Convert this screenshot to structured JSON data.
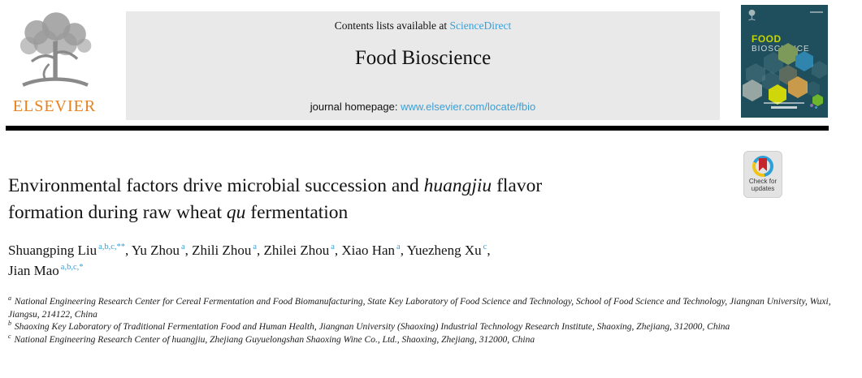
{
  "header": {
    "elsevier_logo_text": "ELSEVIER",
    "contents_prefix": "Contents lists available at ",
    "contents_link": "ScienceDirect",
    "journal_title": "Food Bioscience",
    "homepage_prefix": "journal homepage: ",
    "homepage_link": "www.elsevier.com/locate/fbio"
  },
  "cover": {
    "title_line1": "FOOD",
    "title_line2": "BIOSCIENCE"
  },
  "badge": {
    "line1": "Check for",
    "line2": "updates"
  },
  "article": {
    "title_lines": [
      [
        {
          "t": "Environmental factors drive microbial succession and ",
          "i": false
        },
        {
          "t": "huangjiu",
          "i": true
        },
        {
          "t": " flavor",
          "i": false
        }
      ],
      [
        {
          "t": "formation during raw wheat ",
          "i": false
        },
        {
          "t": "qu",
          "i": true
        },
        {
          "t": " fermentation",
          "i": false
        }
      ]
    ],
    "author_lines": [
      [
        {
          "name": "Shuangping Liu",
          "sup": "a,b,c,**",
          "tail": ", "
        },
        {
          "name": "Yu Zhou",
          "sup": "a",
          "tail": ", "
        },
        {
          "name": "Zhili Zhou",
          "sup": "a",
          "tail": ", "
        },
        {
          "name": "Zhilei Zhou",
          "sup": "a",
          "tail": ", "
        },
        {
          "name": "Xiao Han",
          "sup": "a",
          "tail": ", "
        },
        {
          "name": "Yuezheng Xu",
          "sup": "c",
          "tail": ","
        }
      ],
      [
        {
          "name": "Jian Mao",
          "sup": "a,b,c,*",
          "tail": ""
        }
      ]
    ],
    "affiliations": [
      {
        "sup": "a",
        "text": "National Engineering Research Center for Cereal Fermentation and Food Biomanufacturing, State Key Laboratory of Food Science and Technology, School of Food Science and Technology, Jiangnan University, Wuxi, Jiangsu, 214122, China"
      },
      {
        "sup": "b",
        "text": "Shaoxing Key Laboratory of Traditional Fermentation Food and Human Health, Jiangnan University (Shaoxing) Industrial Technology Research Institute, Shaoxing, Zhejiang, 312000, China"
      },
      {
        "sup": "c",
        "text": "National Engineering Research Center of huangjiu, Zhejiang Guyuelongshan Shaoxing Wine Co., Ltd., Shaoxing, Zhejiang, 312000, China"
      }
    ]
  },
  "colors": {
    "link_blue": "#3a9fd5",
    "elsevier_orange": "#e8811c",
    "header_gray": "#e9e9e9",
    "cover_teal": "#1f4e5c",
    "cover_food_green": "#c2d500",
    "badge_red": "#c5262c",
    "badge_blue": "#2ea0d8",
    "badge_yellow": "#f0c417"
  }
}
